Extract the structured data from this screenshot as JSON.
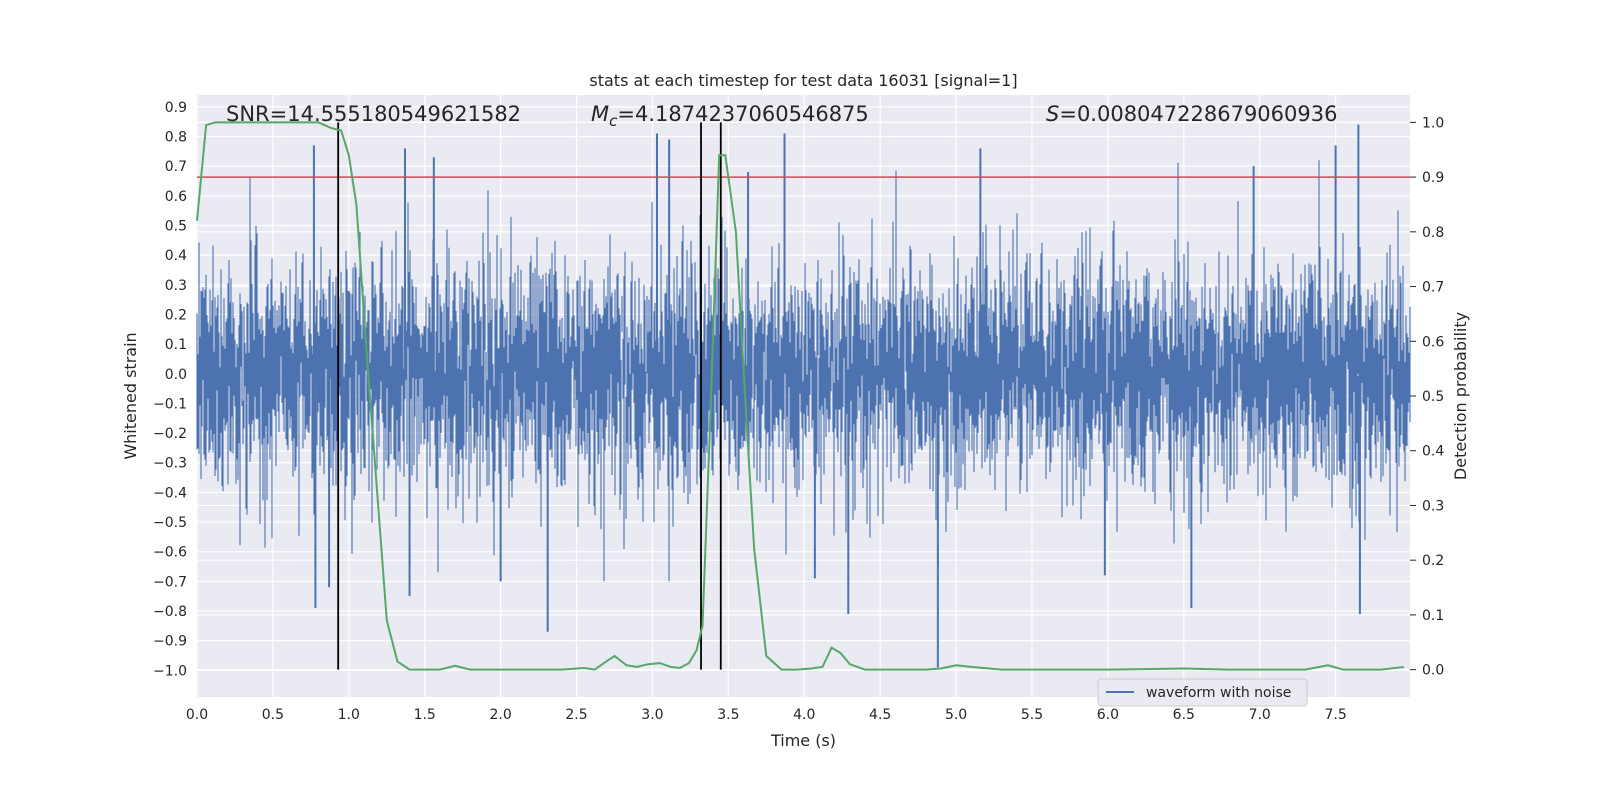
{
  "chart_data": {
    "type": "line",
    "title": "stats at each timestep for test data 16031 [signal=1]",
    "xlabel": "Time (s)",
    "ylabel": "Whitened strain",
    "ylabel_right": "Detection probability",
    "xlim": [
      0.0,
      7.99
    ],
    "ylim": [
      -1.09,
      0.94
    ],
    "ylim_right": [
      -0.05,
      1.05
    ],
    "x_ticks": [
      "0.0",
      "0.5",
      "1.0",
      "1.5",
      "2.0",
      "2.5",
      "3.0",
      "3.5",
      "4.0",
      "4.5",
      "5.0",
      "5.5",
      "6.0",
      "6.5",
      "7.0",
      "7.5"
    ],
    "y_ticks": [
      "0.9",
      "0.8",
      "0.7",
      "0.6",
      "0.5",
      "0.4",
      "0.3",
      "0.2",
      "0.1",
      "0.0",
      "−0.1",
      "−0.2",
      "−0.3",
      "−0.4",
      "−0.5",
      "−0.6",
      "−0.7",
      "−0.8",
      "−0.9",
      "−1.0"
    ],
    "y_ticks_right": [
      "0.0",
      "0.1",
      "0.2",
      "0.3",
      "0.4",
      "0.5",
      "0.6",
      "0.7",
      "0.8",
      "0.9",
      "1.0"
    ],
    "grid": true,
    "legend": {
      "position": "lower-right",
      "entries": [
        "waveform with noise"
      ]
    },
    "annotations": {
      "snr": "SNR=14.555180549621582",
      "mc_symbol": "M",
      "mc_sub": "c",
      "mc_value": "=4.1874237060546875",
      "s_symbol": "S",
      "s_value": "=0.008047228679060936"
    },
    "colors": {
      "background": "#eaeaf2",
      "grid": "#ffffff",
      "waveform": "#4c72b0",
      "probability": "#55a868",
      "threshold": "#c44e52",
      "markers": "#000000"
    },
    "threshold_probability": 0.9,
    "vertical_markers_x": [
      0.93,
      3.32,
      3.45
    ],
    "waveform": {
      "name": "waveform with noise",
      "sample_rate_hz": 2048,
      "typical_amplitude": 0.3,
      "spikes": [
        {
          "x": 0.77,
          "y": 0.77
        },
        {
          "x": 0.78,
          "y": -0.79
        },
        {
          "x": 0.87,
          "y": -0.72
        },
        {
          "x": 1.37,
          "y": 0.76
        },
        {
          "x": 1.4,
          "y": -0.75
        },
        {
          "x": 1.56,
          "y": 0.73
        },
        {
          "x": 2.0,
          "y": -0.7
        },
        {
          "x": 2.31,
          "y": -0.87
        },
        {
          "x": 3.03,
          "y": 0.81
        },
        {
          "x": 3.11,
          "y": 0.79
        },
        {
          "x": 3.63,
          "y": 0.68
        },
        {
          "x": 3.87,
          "y": 0.81
        },
        {
          "x": 4.07,
          "y": -0.69
        },
        {
          "x": 4.29,
          "y": -0.81
        },
        {
          "x": 4.88,
          "y": -0.99
        },
        {
          "x": 5.16,
          "y": 0.76
        },
        {
          "x": 5.98,
          "y": -0.68
        },
        {
          "x": 6.55,
          "y": -0.79
        },
        {
          "x": 6.96,
          "y": 0.7
        },
        {
          "x": 7.5,
          "y": 0.77
        },
        {
          "x": 7.65,
          "y": 0.84
        },
        {
          "x": 7.66,
          "y": -0.81
        }
      ]
    },
    "probability": {
      "x": [
        0.0,
        0.06,
        0.12,
        0.2,
        0.4,
        0.6,
        0.8,
        0.88,
        0.95,
        1.0,
        1.05,
        1.12,
        1.18,
        1.25,
        1.32,
        1.4,
        1.5,
        1.6,
        1.7,
        1.8,
        2.0,
        2.2,
        2.4,
        2.55,
        2.62,
        2.68,
        2.75,
        2.83,
        2.9,
        2.97,
        3.05,
        3.12,
        3.18,
        3.24,
        3.29,
        3.33,
        3.38,
        3.44,
        3.48,
        3.55,
        3.62,
        3.67,
        3.75,
        3.85,
        3.95,
        4.05,
        4.12,
        4.18,
        4.24,
        4.3,
        4.4,
        4.6,
        4.8,
        4.9,
        5.0,
        5.1,
        5.3,
        5.6,
        6.0,
        6.5,
        6.8,
        7.0,
        7.3,
        7.45,
        7.55,
        7.8,
        7.95
      ],
      "y": [
        0.82,
        0.995,
        1.0,
        1.0,
        1.0,
        1.0,
        1.0,
        0.99,
        0.985,
        0.94,
        0.85,
        0.57,
        0.35,
        0.09,
        0.015,
        0.0,
        0.0,
        0.0,
        0.007,
        0.0,
        0.0,
        0.0,
        0.0,
        0.003,
        0.0,
        0.012,
        0.025,
        0.008,
        0.005,
        0.01,
        0.012,
        0.005,
        0.003,
        0.012,
        0.035,
        0.08,
        0.45,
        0.94,
        0.94,
        0.8,
        0.45,
        0.22,
        0.025,
        0.0,
        0.0,
        0.002,
        0.005,
        0.04,
        0.03,
        0.01,
        0.0,
        0.0,
        0.0,
        0.002,
        0.008,
        0.005,
        0.0,
        0.0,
        0.0,
        0.002,
        0.0,
        0.0,
        0.0,
        0.008,
        0.0,
        0.0,
        0.005
      ]
    }
  }
}
